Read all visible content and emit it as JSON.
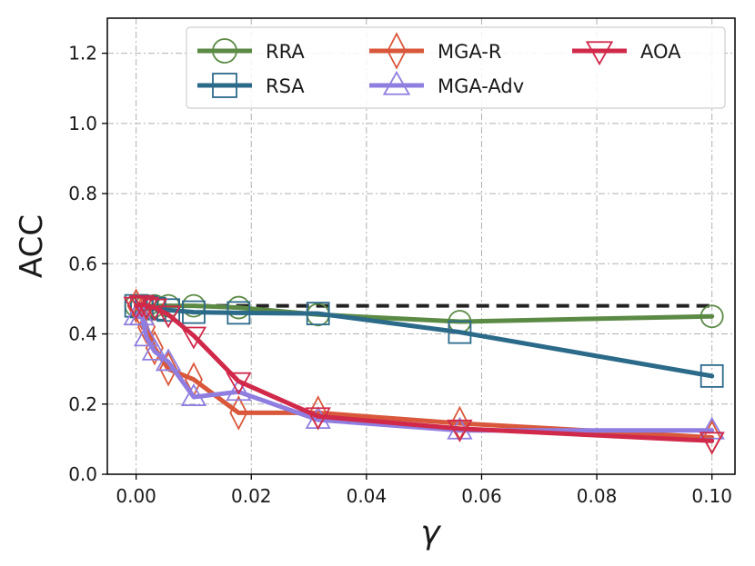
{
  "chart_data": {
    "type": "line",
    "xlabel": "γ",
    "ylabel": "ACC",
    "xlim": [
      -0.005,
      0.104
    ],
    "ylim": [
      0.0,
      1.3
    ],
    "xticks": [
      0.0,
      0.02,
      0.04,
      0.06,
      0.08,
      0.1
    ],
    "xtick_labels": [
      "0.00",
      "0.02",
      "0.04",
      "0.06",
      "0.08",
      "0.10"
    ],
    "yticks": [
      0.0,
      0.2,
      0.4,
      0.6,
      0.8,
      1.0,
      1.2
    ],
    "ytick_labels": [
      "0.0",
      "0.2",
      "0.4",
      "0.6",
      "0.8",
      "1.0",
      "1.2"
    ],
    "grid": true,
    "legend_position": "top-right",
    "reference_line": {
      "y": 0.48,
      "x_range": [
        0.0,
        0.1
      ],
      "style": "dashed",
      "color": "#222222"
    },
    "series": [
      {
        "name": "RRA",
        "color": "#5b8a45",
        "marker": "circle",
        "x": [
          0.0,
          0.001,
          0.0018,
          0.0032,
          0.0056,
          0.01,
          0.0178,
          0.0316,
          0.0562,
          0.1
        ],
        "y": [
          0.48,
          0.48,
          0.48,
          0.48,
          0.48,
          0.48,
          0.475,
          0.455,
          0.435,
          0.45
        ]
      },
      {
        "name": "RSA",
        "color": "#2c6a8a",
        "marker": "square",
        "x": [
          0.0,
          0.001,
          0.0018,
          0.0032,
          0.0056,
          0.01,
          0.0178,
          0.0316,
          0.0562,
          0.1
        ],
        "y": [
          0.48,
          0.478,
          0.476,
          0.472,
          0.468,
          0.462,
          0.46,
          0.458,
          0.405,
          0.28
        ]
      },
      {
        "name": "MGA-R",
        "color": "#d9573b",
        "marker": "diamond",
        "x": [
          0.0,
          0.001,
          0.0018,
          0.0032,
          0.0056,
          0.01,
          0.0178,
          0.0316,
          0.0562,
          0.1
        ],
        "y": [
          0.48,
          0.46,
          0.42,
          0.36,
          0.3,
          0.27,
          0.175,
          0.175,
          0.145,
          0.105
        ]
      },
      {
        "name": "MGA-Adv",
        "color": "#8f7ee0",
        "marker": "triangle-up",
        "x": [
          0.0,
          0.001,
          0.0018,
          0.0032,
          0.0056,
          0.01,
          0.0178,
          0.0316,
          0.0562,
          0.1
        ],
        "y": [
          0.45,
          0.45,
          0.39,
          0.35,
          0.32,
          0.22,
          0.235,
          0.155,
          0.125,
          0.125
        ]
      },
      {
        "name": "AOA",
        "color": "#d0294a",
        "marker": "triangle-down",
        "x": [
          0.0,
          0.001,
          0.0018,
          0.0032,
          0.0056,
          0.01,
          0.0178,
          0.0316,
          0.0562,
          0.1
        ],
        "y": [
          0.48,
          0.485,
          0.48,
          0.475,
          0.455,
          0.395,
          0.265,
          0.165,
          0.13,
          0.095
        ]
      }
    ]
  }
}
